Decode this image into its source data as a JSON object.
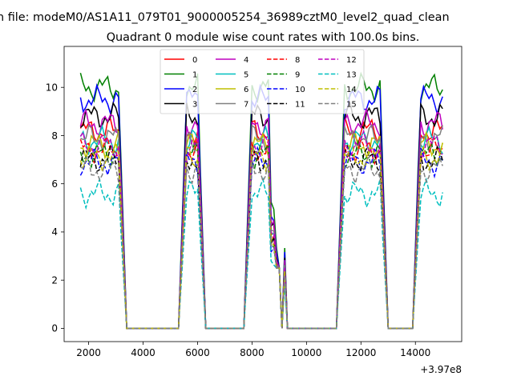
{
  "chart_data": {
    "type": "line",
    "suptitle": "n file: modeM0/AS1A11_079T01_9000005254_36989cztM0_level2_quad_clean",
    "title": "Quadrant 0 module wise count rates with 100.0s bins.",
    "xlabel": "",
    "ylabel": "",
    "x_offset_label": "+3.97e8",
    "xlim": [
      1100,
      15700
    ],
    "ylim": [
      -0.55,
      11.7
    ],
    "xticks": [
      2000,
      4000,
      6000,
      8000,
      10000,
      12000,
      14000
    ],
    "yticks": [
      0,
      2,
      4,
      6,
      8,
      10
    ],
    "grid": false,
    "legend": {
      "placement": "top-center",
      "columns": 4
    },
    "segments": [
      {
        "start": 1700,
        "end": 3100
      },
      {
        "start": 5600,
        "end": 6000
      },
      {
        "start": 8000,
        "end": 8800
      },
      {
        "start": 9000,
        "end": 9000
      },
      {
        "start": 11400,
        "end": 12700
      },
      {
        "start": 14200,
        "end": 15000
      }
    ],
    "series": [
      {
        "name": "0",
        "color": "#ff0000",
        "dash": "solid",
        "level": 8.2
      },
      {
        "name": "1",
        "color": "#008000",
        "dash": "solid",
        "level": 10.0
      },
      {
        "name": "2",
        "color": "#0000ff",
        "dash": "solid",
        "level": 9.5
      },
      {
        "name": "3",
        "color": "#000000",
        "dash": "solid",
        "level": 8.8
      },
      {
        "name": "4",
        "color": "#bf00bf",
        "dash": "solid",
        "level": 8.5
      },
      {
        "name": "5",
        "color": "#00bfbf",
        "dash": "solid",
        "level": 7.8
      },
      {
        "name": "6",
        "color": "#bfbf00",
        "dash": "solid",
        "level": 7.6
      },
      {
        "name": "7",
        "color": "#808080",
        "dash": "solid",
        "level": 7.9
      },
      {
        "name": "8",
        "color": "#ff0000",
        "dash": "dashed",
        "level": 7.4
      },
      {
        "name": "9",
        "color": "#008000",
        "dash": "dashed",
        "level": 7.2
      },
      {
        "name": "10",
        "color": "#0000ff",
        "dash": "dashed",
        "level": 6.9
      },
      {
        "name": "11",
        "color": "#000000",
        "dash": "dashed",
        "level": 7.0
      },
      {
        "name": "12",
        "color": "#bf00bf",
        "dash": "dashed",
        "level": 7.6
      },
      {
        "name": "13",
        "color": "#00bfbf",
        "dash": "dashed",
        "level": 5.6
      },
      {
        "name": "14",
        "color": "#bfbf00",
        "dash": "dashed",
        "level": 7.1
      },
      {
        "name": "15",
        "color": "#808080",
        "dash": "dashed",
        "level": 6.6
      }
    ]
  }
}
